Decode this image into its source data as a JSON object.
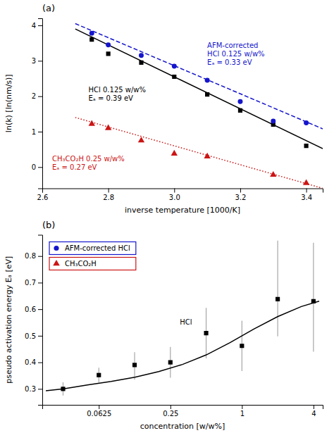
{
  "chart_data": [
    {
      "type": "scatter",
      "title": "(a)",
      "x_label": "inverse temperature [1000/K]",
      "y_label": "ln(k) [ln(nm/s)]",
      "xlim": [
        2.6,
        3.45
      ],
      "ylim": [
        -0.6,
        4.2
      ],
      "xticks": [
        2.6,
        2.8,
        {
          "value": 3.0,
          "label": "3.0"
        },
        3.2,
        3.4
      ],
      "yticks": [
        0,
        1,
        2,
        3,
        4
      ],
      "series": [
        {
          "type": "line",
          "color": "#000000",
          "line_style": "solid",
          "x": [
            2.7,
            3.45
          ],
          "values": [
            3.9,
            0.52
          ]
        },
        {
          "type": "line",
          "color": "#1515CC",
          "line_style": "dashed",
          "x": [
            2.7,
            3.45
          ],
          "values": [
            4.05,
            1.08
          ]
        },
        {
          "type": "line",
          "color": "#CC1515",
          "line_style": "dotted",
          "x": [
            2.7,
            3.45
          ],
          "values": [
            1.4,
            -0.6
          ]
        },
        {
          "type": "scatter",
          "color": "#000000",
          "marker": "square",
          "x": [
            2.75,
            2.8,
            2.9,
            3.0,
            3.1,
            3.2,
            3.3,
            3.4
          ],
          "values": [
            3.6,
            3.2,
            2.95,
            2.55,
            2.05,
            1.6,
            1.2,
            0.6
          ]
        },
        {
          "type": "scatter",
          "color": "#1515CC",
          "marker": "circle",
          "x": [
            2.75,
            2.8,
            2.9,
            3.0,
            3.1,
            3.2,
            3.3,
            3.4
          ],
          "values": [
            3.78,
            3.45,
            3.15,
            2.85,
            2.45,
            1.85,
            1.3,
            1.25
          ]
        },
        {
          "type": "scatter",
          "color": "#CC1515",
          "marker": "triangle",
          "x": [
            2.75,
            2.8,
            2.9,
            3.0,
            3.1,
            3.3,
            3.4
          ],
          "values": [
            1.22,
            1.1,
            0.75,
            0.38,
            0.3,
            -0.22,
            -0.45
          ]
        }
      ],
      "annotations": [
        {
          "text": "HCl 0.125 w/w%\nEₐ = 0.39 eV",
          "x": 2.74,
          "y": 2.3,
          "color": "#000000"
        },
        {
          "text": "AFM-corrected\nHCl 0.125 w/w%\nEₐ = 0.33 eV",
          "x": 3.1,
          "y": 3.55,
          "color": "#1515CC"
        },
        {
          "text": "CH₃CO₂H 0.25 w/w%\nEₐ = 0.27 eV",
          "x": 2.63,
          "y": 0.35,
          "color": "#CC1515"
        }
      ]
    },
    {
      "type": "scatter",
      "log": "x",
      "title": "(b)",
      "x_label": "concentration [w/w%]",
      "y_label": "pseudo activation energy Eₐ [eV]",
      "xlim": [
        0.02089296130854039,
        4.786300923226383
      ],
      "ylim": [
        0.24,
        0.88
      ],
      "xticks": [
        0.0625,
        0.25,
        1,
        4
      ],
      "yticks": [
        0.3,
        0.4,
        0.5,
        0.6,
        0.7,
        0.8
      ],
      "series": [
        {
          "type": "line",
          "color": "#000000",
          "line_style": "solid",
          "x": [
            0.022387211385683396,
            0.03162277660168379,
            0.05011872336272722,
            0.07943282347242814,
            0.12589254117941673,
            0.19952623149688797,
            0.31622776601683794,
            0.501187233627272,
            0.7943282347242815,
            1.2589254117941673,
            1.9952623149688795,
            3.1622776601683795,
            4.466835921509632
          ],
          "values": [
            0.293,
            0.3,
            0.315,
            0.328,
            0.344,
            0.365,
            0.392,
            0.428,
            0.474,
            0.525,
            0.572,
            0.61,
            0.63
          ]
        },
        {
          "type": "scatter",
          "color": "#000000",
          "marker": "square",
          "x": [
            0.03125,
            0.0625,
            0.125,
            0.25,
            0.5,
            1.0,
            2.0,
            4.0
          ],
          "values": [
            0.3,
            0.352,
            0.39,
            0.4,
            0.51,
            0.462,
            0.638,
            0.63
          ],
          "error_minus": [
            0.025,
            0.028,
            0.055,
            0.058,
            0.095,
            0.095,
            0.14,
            0.19
          ],
          "error_plus": [
            0.025,
            0.028,
            0.048,
            0.058,
            0.095,
            0.095,
            0.22,
            0.22
          ]
        }
      ],
      "annotations": [
        {
          "text": "HCl",
          "x": 0.3,
          "y": 0.565,
          "color": "#000000"
        }
      ],
      "legend": "upper left",
      "legend_entries": [
        {
          "name": "AFM-corrected HCl",
          "color": "#1515CC",
          "marker": "circle"
        },
        {
          "name": "CH₃CO₂H",
          "color": "#CC1515",
          "marker": "triangle"
        }
      ]
    }
  ]
}
